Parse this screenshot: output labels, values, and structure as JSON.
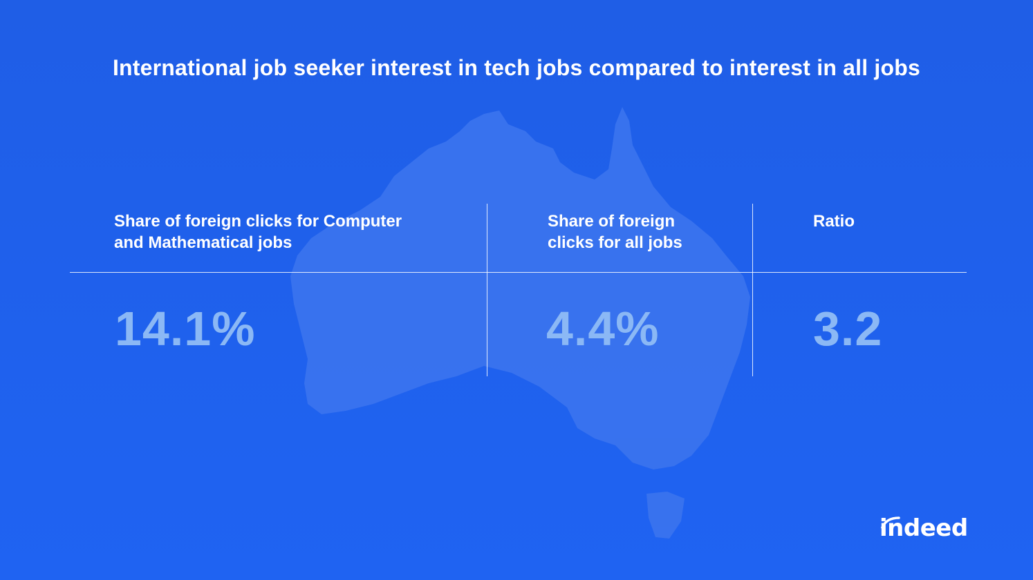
{
  "chart_data": {
    "type": "table",
    "title": "International job seeker interest in tech jobs compared to interest in all jobs",
    "columns": [
      {
        "header": "Share of foreign clicks for Computer\nand Mathematical jobs",
        "value": "14.1%"
      },
      {
        "header": "Share of foreign\nclicks for all jobs",
        "value": "4.4%"
      },
      {
        "header": "Ratio",
        "value": "3.2"
      }
    ]
  },
  "brand": {
    "logo_text": "indeed"
  },
  "colors": {
    "background": "#1f60ee",
    "value_text": "#8bb8f5",
    "map_fill": "#3a73ee"
  },
  "icons": {
    "map": "australia-map-icon"
  }
}
